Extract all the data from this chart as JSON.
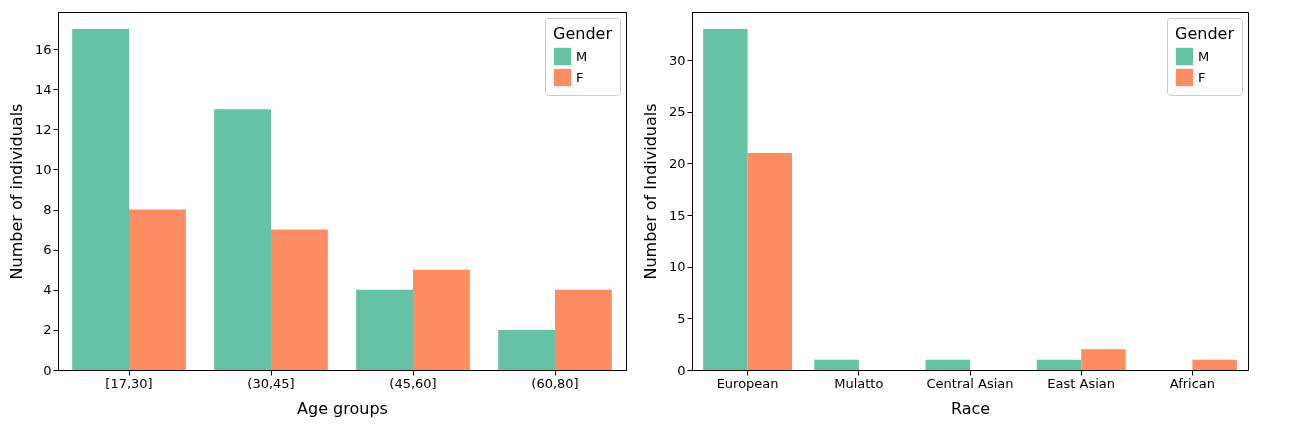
{
  "chart_data": [
    {
      "type": "bar",
      "xlabel": "Age groups",
      "ylabel": "Number of individuals",
      "legend_title": "Gender",
      "legend": "top right",
      "grid": false,
      "categories": [
        "[17,30]",
        "(30,45]",
        "(45,60]",
        "(60,80]"
      ],
      "series": [
        {
          "name": "M",
          "color": "#66c2a5",
          "values": [
            17,
            13,
            4,
            2
          ]
        },
        {
          "name": "F",
          "color": "#fc8d62",
          "values": [
            8,
            7,
            5,
            4
          ]
        }
      ],
      "ylim": [
        0,
        17.85
      ],
      "yticks": [
        0,
        2,
        4,
        6,
        8,
        10,
        12,
        14,
        16
      ]
    },
    {
      "type": "bar",
      "xlabel": "Race",
      "ylabel": "Number of Individuals",
      "legend_title": "Gender",
      "legend": "top right",
      "grid": false,
      "categories": [
        "European",
        "Mulatto",
        "Central Asian",
        "East Asian",
        "African"
      ],
      "series": [
        {
          "name": "M",
          "color": "#66c2a5",
          "values": [
            33,
            1,
            1,
            1,
            0
          ]
        },
        {
          "name": "F",
          "color": "#fc8d62",
          "values": [
            21,
            0,
            0,
            2,
            1
          ]
        }
      ],
      "ylim": [
        0,
        34.65
      ],
      "yticks": [
        0,
        5,
        10,
        15,
        20,
        25,
        30
      ]
    }
  ]
}
